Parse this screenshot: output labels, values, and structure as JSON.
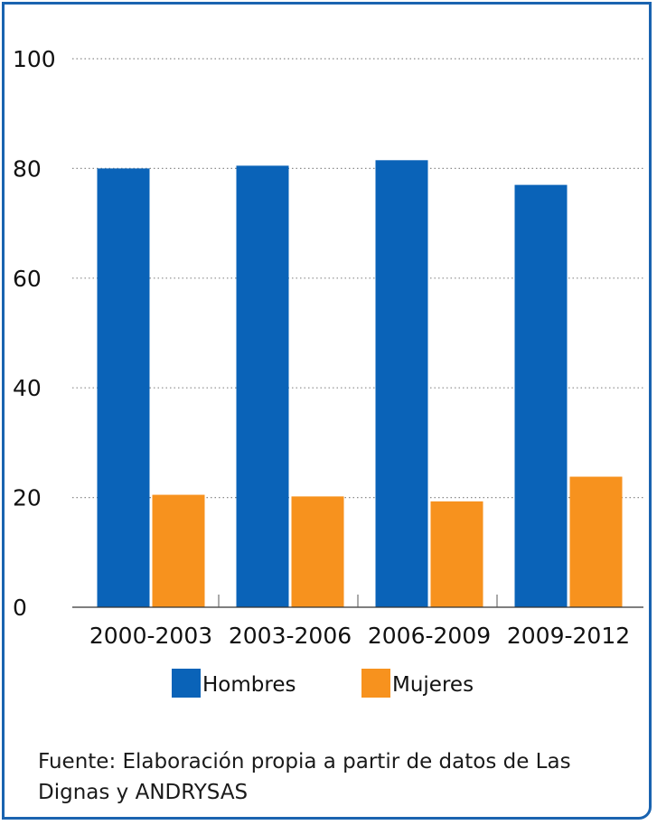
{
  "chart_data": {
    "type": "bar",
    "categories": [
      "2000-2003",
      "2003-2006",
      "2006-2009",
      "2009-2012"
    ],
    "series": [
      {
        "name": "Hombres",
        "values": [
          80,
          80.5,
          81.5,
          77
        ]
      },
      {
        "name": "Mujeres",
        "values": [
          20.5,
          20.2,
          19.3,
          23.8
        ]
      }
    ],
    "ylim": [
      0,
      100
    ],
    "yticks": [
      0,
      20,
      40,
      60,
      80,
      100
    ],
    "grid": "dotted horizontal",
    "legend_position": "bottom-center",
    "colors": {
      "Hombres": "#0a63b8",
      "Mujeres": "#f7921e",
      "frame": "#1a63b0"
    }
  },
  "source": "Fuente: Elaboración propia a partir de datos de Las Dignas y ANDRYSAS"
}
